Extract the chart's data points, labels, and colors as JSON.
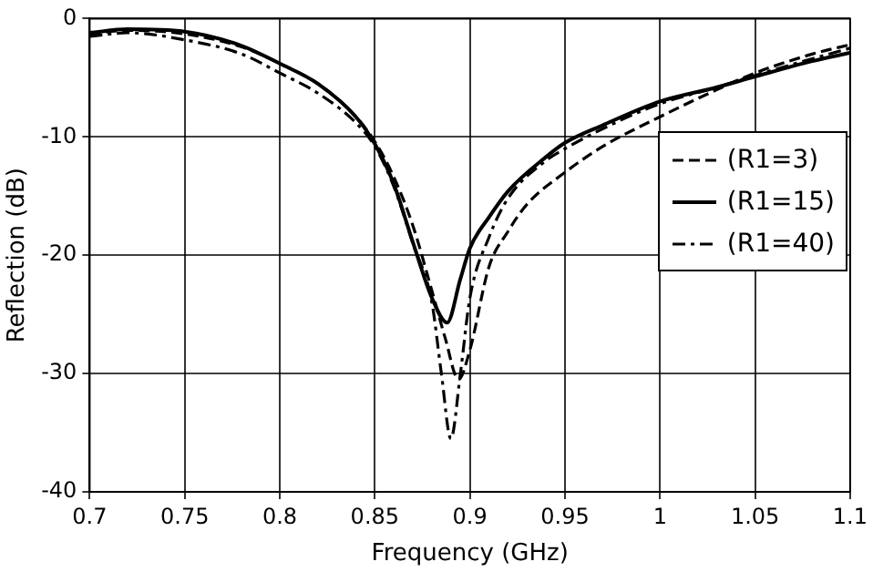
{
  "chart_data": {
    "type": "line",
    "xlabel": "Frequency (GHz)",
    "ylabel": "Reflection (dB)",
    "xlim": [
      0.7,
      1.1
    ],
    "xticks": [
      0.7,
      0.75,
      0.8,
      0.85,
      0.9,
      0.95,
      1,
      1.05,
      1.1
    ],
    "ylim": [
      -40,
      0
    ],
    "yticks": [
      -40,
      -30,
      -20,
      -10,
      0
    ],
    "grid": true,
    "legend": "right",
    "marker": "none",
    "series": [
      {
        "name": "(R1=3)",
        "color": "#000000",
        "line_style": "dashed",
        "x": [
          0.7,
          0.72,
          0.75,
          0.78,
          0.8,
          0.82,
          0.84,
          0.85,
          0.86,
          0.87,
          0.88,
          0.887,
          0.894,
          0.9,
          0.91,
          0.92,
          0.93,
          0.95,
          0.97,
          1,
          1.03,
          1.05,
          1.08,
          1.1
        ],
        "values": [
          -1.3,
          -1,
          -1.3,
          -2.4,
          -3.8,
          -5.5,
          -8.3,
          -10.4,
          -13.4,
          -17.5,
          -23,
          -27,
          -30.5,
          -28,
          -21,
          -18,
          -15.7,
          -13,
          -10.8,
          -8.3,
          -6,
          -4.6,
          -3,
          -2.2
        ]
      },
      {
        "name": "(R1=15)",
        "color": "#000000",
        "line_style": "solid",
        "x": [
          0.7,
          0.72,
          0.75,
          0.78,
          0.8,
          0.82,
          0.84,
          0.85,
          0.86,
          0.87,
          0.88,
          0.888,
          0.895,
          0.9,
          0.91,
          0.92,
          0.94,
          0.95,
          0.97,
          1,
          1.03,
          1.05,
          1.08,
          1.1
        ],
        "values": [
          -1.2,
          -0.9,
          -1.1,
          -2.3,
          -3.8,
          -5.5,
          -8.3,
          -10.6,
          -14,
          -18.9,
          -23.6,
          -25.7,
          -22,
          -19.4,
          -16.8,
          -14.6,
          -11.7,
          -10.5,
          -9,
          -7,
          -5.8,
          -4.9,
          -3.6,
          -2.9
        ]
      },
      {
        "name": "(R1=40)",
        "color": "#000000",
        "line_style": "dashdot",
        "x": [
          0.7,
          0.72,
          0.75,
          0.78,
          0.8,
          0.82,
          0.84,
          0.85,
          0.86,
          0.87,
          0.88,
          0.885,
          0.89,
          0.895,
          0.9,
          0.91,
          0.92,
          0.94,
          0.95,
          0.97,
          1,
          1.03,
          1.05,
          1.08,
          1.1
        ],
        "values": [
          -1.5,
          -1.2,
          -1.8,
          -3,
          -4.6,
          -6.3,
          -8.8,
          -10.8,
          -14.2,
          -19,
          -24,
          -30,
          -35.5,
          -30,
          -23.6,
          -18.5,
          -15.2,
          -12,
          -11,
          -9.3,
          -7.2,
          -5.8,
          -4.8,
          -3.4,
          -2.5
        ]
      }
    ]
  }
}
